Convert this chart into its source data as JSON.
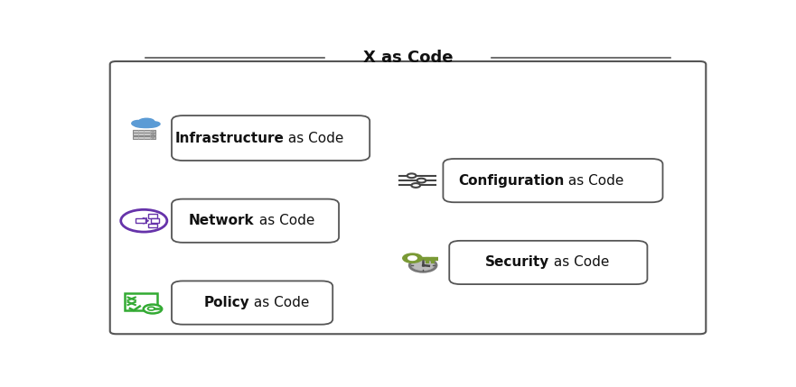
{
  "title": "X as Code",
  "bg": "#ffffff",
  "items": [
    {
      "bold": "Infrastructure",
      "rest": " as Code",
      "bx": 0.135,
      "by": 0.635,
      "bw": 0.285,
      "bh": 0.115,
      "ix": 0.072,
      "iy": 0.72,
      "icon": "cloud_server"
    },
    {
      "bold": "Network",
      "rest": " as Code",
      "bx": 0.135,
      "by": 0.36,
      "bw": 0.235,
      "bh": 0.11,
      "ix": 0.072,
      "iy": 0.415,
      "icon": "network"
    },
    {
      "bold": "Policy",
      "rest": " as Code",
      "bx": 0.135,
      "by": 0.085,
      "bw": 0.225,
      "bh": 0.11,
      "ix": 0.072,
      "iy": 0.14,
      "icon": "policy"
    },
    {
      "bold": "Configuration",
      "rest": " as Code",
      "bx": 0.575,
      "by": 0.495,
      "bw": 0.32,
      "bh": 0.11,
      "ix": 0.515,
      "iy": 0.55,
      "icon": "config"
    },
    {
      "bold": "Security",
      "rest": " as Code",
      "bx": 0.585,
      "by": 0.22,
      "bw": 0.285,
      "bh": 0.11,
      "ix": 0.515,
      "iy": 0.275,
      "icon": "security"
    }
  ]
}
